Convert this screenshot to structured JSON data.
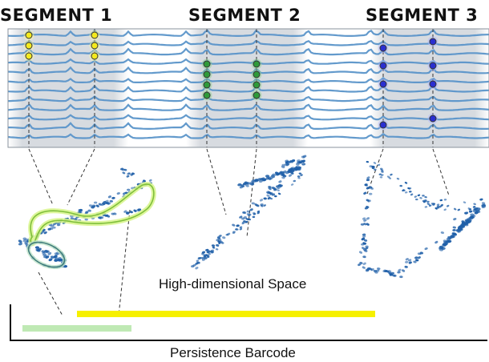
{
  "segments": [
    {
      "title": "SEGMENT 1",
      "marker_color": "#f4ea1e"
    },
    {
      "title": "SEGMENT 2",
      "marker_color": "#2f9a3a"
    },
    {
      "title": "SEGMENT 3",
      "marker_color": "#2a2fd0"
    }
  ],
  "captions": {
    "space": "High-dimensional Space",
    "barcode": "Persistence Barcode"
  },
  "barcode": {
    "bars": [
      {
        "name": "yellow-bar",
        "color": "#f6f000"
      },
      {
        "name": "green-bar",
        "color": "#bfe9b4"
      }
    ]
  },
  "colors": {
    "signal": "#5b95c9",
    "cloud": "#1f5fa8",
    "band": "#d9dde2",
    "loop_glow": "#c8f07a"
  }
}
